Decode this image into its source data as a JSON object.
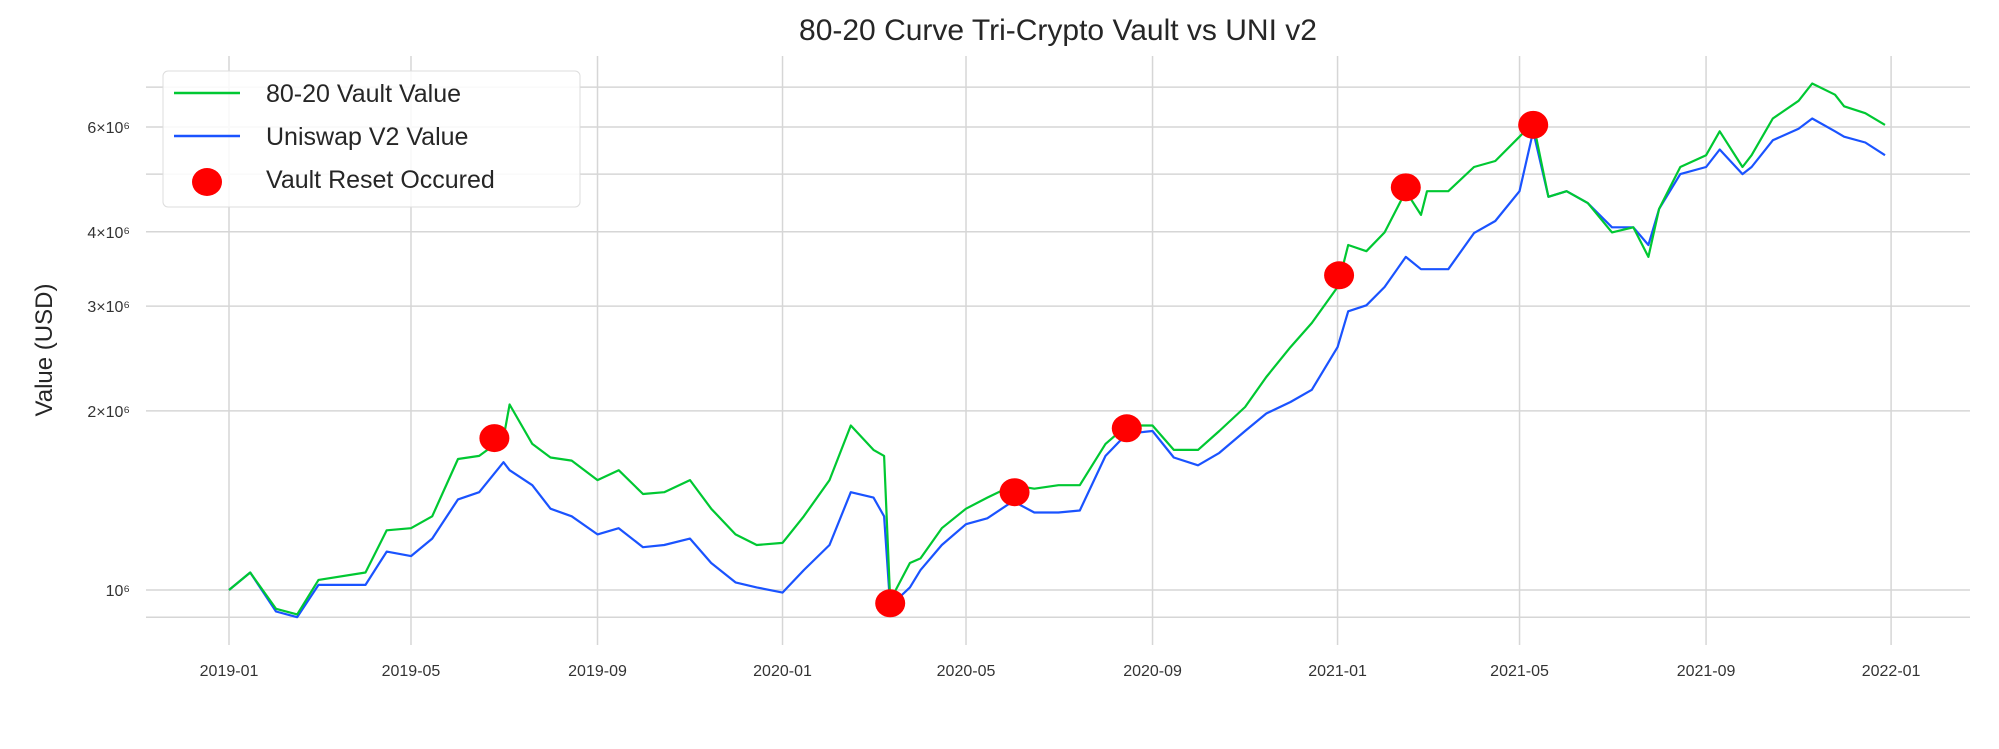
{
  "chart_data": {
    "type": "line",
    "title": "80-20 Curve Tri-Crypto Vault vs UNI v2",
    "xlabel": "",
    "ylabel": "Value (USD)",
    "yscale": "log",
    "ylim": [
      880000,
      7600000
    ],
    "xlim": [
      "2018-11-15",
      "2022-02-15"
    ],
    "grid": true,
    "legend_position": "top-left",
    "x_ticks": [
      "2019-01",
      "2019-05",
      "2019-09",
      "2020-01",
      "2020-05",
      "2020-09",
      "2021-01",
      "2021-05",
      "2021-09",
      "2022-01"
    ],
    "y_ticks": [
      {
        "value": 1000000,
        "label": "10⁶"
      },
      {
        "value": 2000000,
        "label": "2×10⁶"
      },
      {
        "value": 3000000,
        "label": "3×10⁶"
      },
      {
        "value": 4000000,
        "label": "4×10⁶"
      },
      {
        "value": 6000000,
        "label": "6×10⁶"
      }
    ],
    "minor_y_gridlines": [
      900000,
      5000000,
      7000000
    ],
    "x": [
      "2019-01-01",
      "2019-01-15",
      "2019-02-01",
      "2019-02-15",
      "2019-03-01",
      "2019-04-01",
      "2019-04-15",
      "2019-05-01",
      "2019-05-15",
      "2019-06-01",
      "2019-06-15",
      "2019-07-01",
      "2019-07-05",
      "2019-07-20",
      "2019-08-01",
      "2019-08-15",
      "2019-09-01",
      "2019-09-15",
      "2019-10-01",
      "2019-10-15",
      "2019-11-01",
      "2019-11-15",
      "2019-12-01",
      "2019-12-15",
      "2020-01-01",
      "2020-01-15",
      "2020-02-01",
      "2020-02-15",
      "2020-03-01",
      "2020-03-08",
      "2020-03-12",
      "2020-03-25",
      "2020-04-01",
      "2020-04-15",
      "2020-05-01",
      "2020-05-15",
      "2020-06-01",
      "2020-06-15",
      "2020-07-01",
      "2020-07-15",
      "2020-08-01",
      "2020-08-15",
      "2020-09-01",
      "2020-09-15",
      "2020-10-01",
      "2020-10-15",
      "2020-11-01",
      "2020-11-15",
      "2020-12-01",
      "2020-12-15",
      "2021-01-01",
      "2021-01-08",
      "2021-01-20",
      "2021-02-01",
      "2021-02-15",
      "2021-02-25",
      "2021-03-01",
      "2021-03-15",
      "2021-04-01",
      "2021-04-15",
      "2021-05-01",
      "2021-05-10",
      "2021-05-20",
      "2021-06-01",
      "2021-06-15",
      "2021-07-01",
      "2021-07-15",
      "2021-07-25",
      "2021-08-01",
      "2021-08-15",
      "2021-09-01",
      "2021-09-10",
      "2021-09-25",
      "2021-10-01",
      "2021-10-15",
      "2021-11-01",
      "2021-11-10",
      "2021-11-25",
      "2021-12-01",
      "2021-12-15",
      "2021-12-28"
    ],
    "series": [
      {
        "name": "80-20 Vault Value",
        "color": "#00c832",
        "values": [
          1.0,
          1.07,
          0.93,
          0.91,
          1.04,
          1.07,
          1.26,
          1.27,
          1.33,
          1.66,
          1.68,
          1.8,
          2.05,
          1.76,
          1.67,
          1.65,
          1.53,
          1.59,
          1.45,
          1.46,
          1.53,
          1.37,
          1.24,
          1.19,
          1.2,
          1.33,
          1.53,
          1.89,
          1.72,
          1.68,
          0.96,
          1.11,
          1.13,
          1.27,
          1.37,
          1.43,
          1.5,
          1.48,
          1.5,
          1.5,
          1.76,
          1.89,
          1.89,
          1.72,
          1.72,
          1.85,
          2.03,
          2.28,
          2.56,
          2.81,
          3.23,
          3.8,
          3.71,
          3.99,
          4.68,
          4.27,
          4.68,
          4.68,
          5.14,
          5.26,
          5.78,
          6.1,
          4.58,
          4.68,
          4.47,
          3.99,
          4.07,
          3.63,
          4.37,
          5.14,
          5.38,
          5.9,
          5.14,
          5.38,
          6.2,
          6.64,
          7.1,
          6.8,
          6.5,
          6.33,
          6.05
        ]
      },
      {
        "name": "Uniswap V2 Value",
        "color": "#1a53ff",
        "values": [
          1.0,
          1.07,
          0.92,
          0.9,
          1.02,
          1.02,
          1.16,
          1.14,
          1.22,
          1.42,
          1.46,
          1.64,
          1.59,
          1.5,
          1.37,
          1.33,
          1.24,
          1.27,
          1.18,
          1.19,
          1.22,
          1.11,
          1.03,
          1.01,
          0.99,
          1.08,
          1.19,
          1.46,
          1.43,
          1.33,
          0.94,
          1.01,
          1.08,
          1.19,
          1.29,
          1.32,
          1.41,
          1.35,
          1.35,
          1.36,
          1.68,
          1.83,
          1.85,
          1.67,
          1.62,
          1.7,
          1.85,
          1.98,
          2.07,
          2.17,
          2.56,
          2.94,
          3.01,
          3.23,
          3.63,
          3.46,
          3.46,
          3.46,
          3.98,
          4.17,
          4.68,
          5.9,
          4.58,
          4.68,
          4.47,
          4.07,
          4.07,
          3.8,
          4.37,
          5.0,
          5.14,
          5.5,
          5.0,
          5.14,
          5.7,
          5.96,
          6.2,
          5.9,
          5.78,
          5.65,
          5.38
        ]
      }
    ],
    "value_unit_multiplier": 1000000,
    "resets": {
      "name": "Vault Reset Occured",
      "color": "#ff0000",
      "points": [
        {
          "x": "2019-06-25",
          "y": 1800000
        },
        {
          "x": "2020-03-12",
          "y": 950000
        },
        {
          "x": "2020-06-02",
          "y": 1460000
        },
        {
          "x": "2020-08-15",
          "y": 1870000
        },
        {
          "x": "2021-01-02",
          "y": 3380000
        },
        {
          "x": "2021-02-15",
          "y": 4750000
        },
        {
          "x": "2021-05-10",
          "y": 6050000
        }
      ]
    }
  }
}
